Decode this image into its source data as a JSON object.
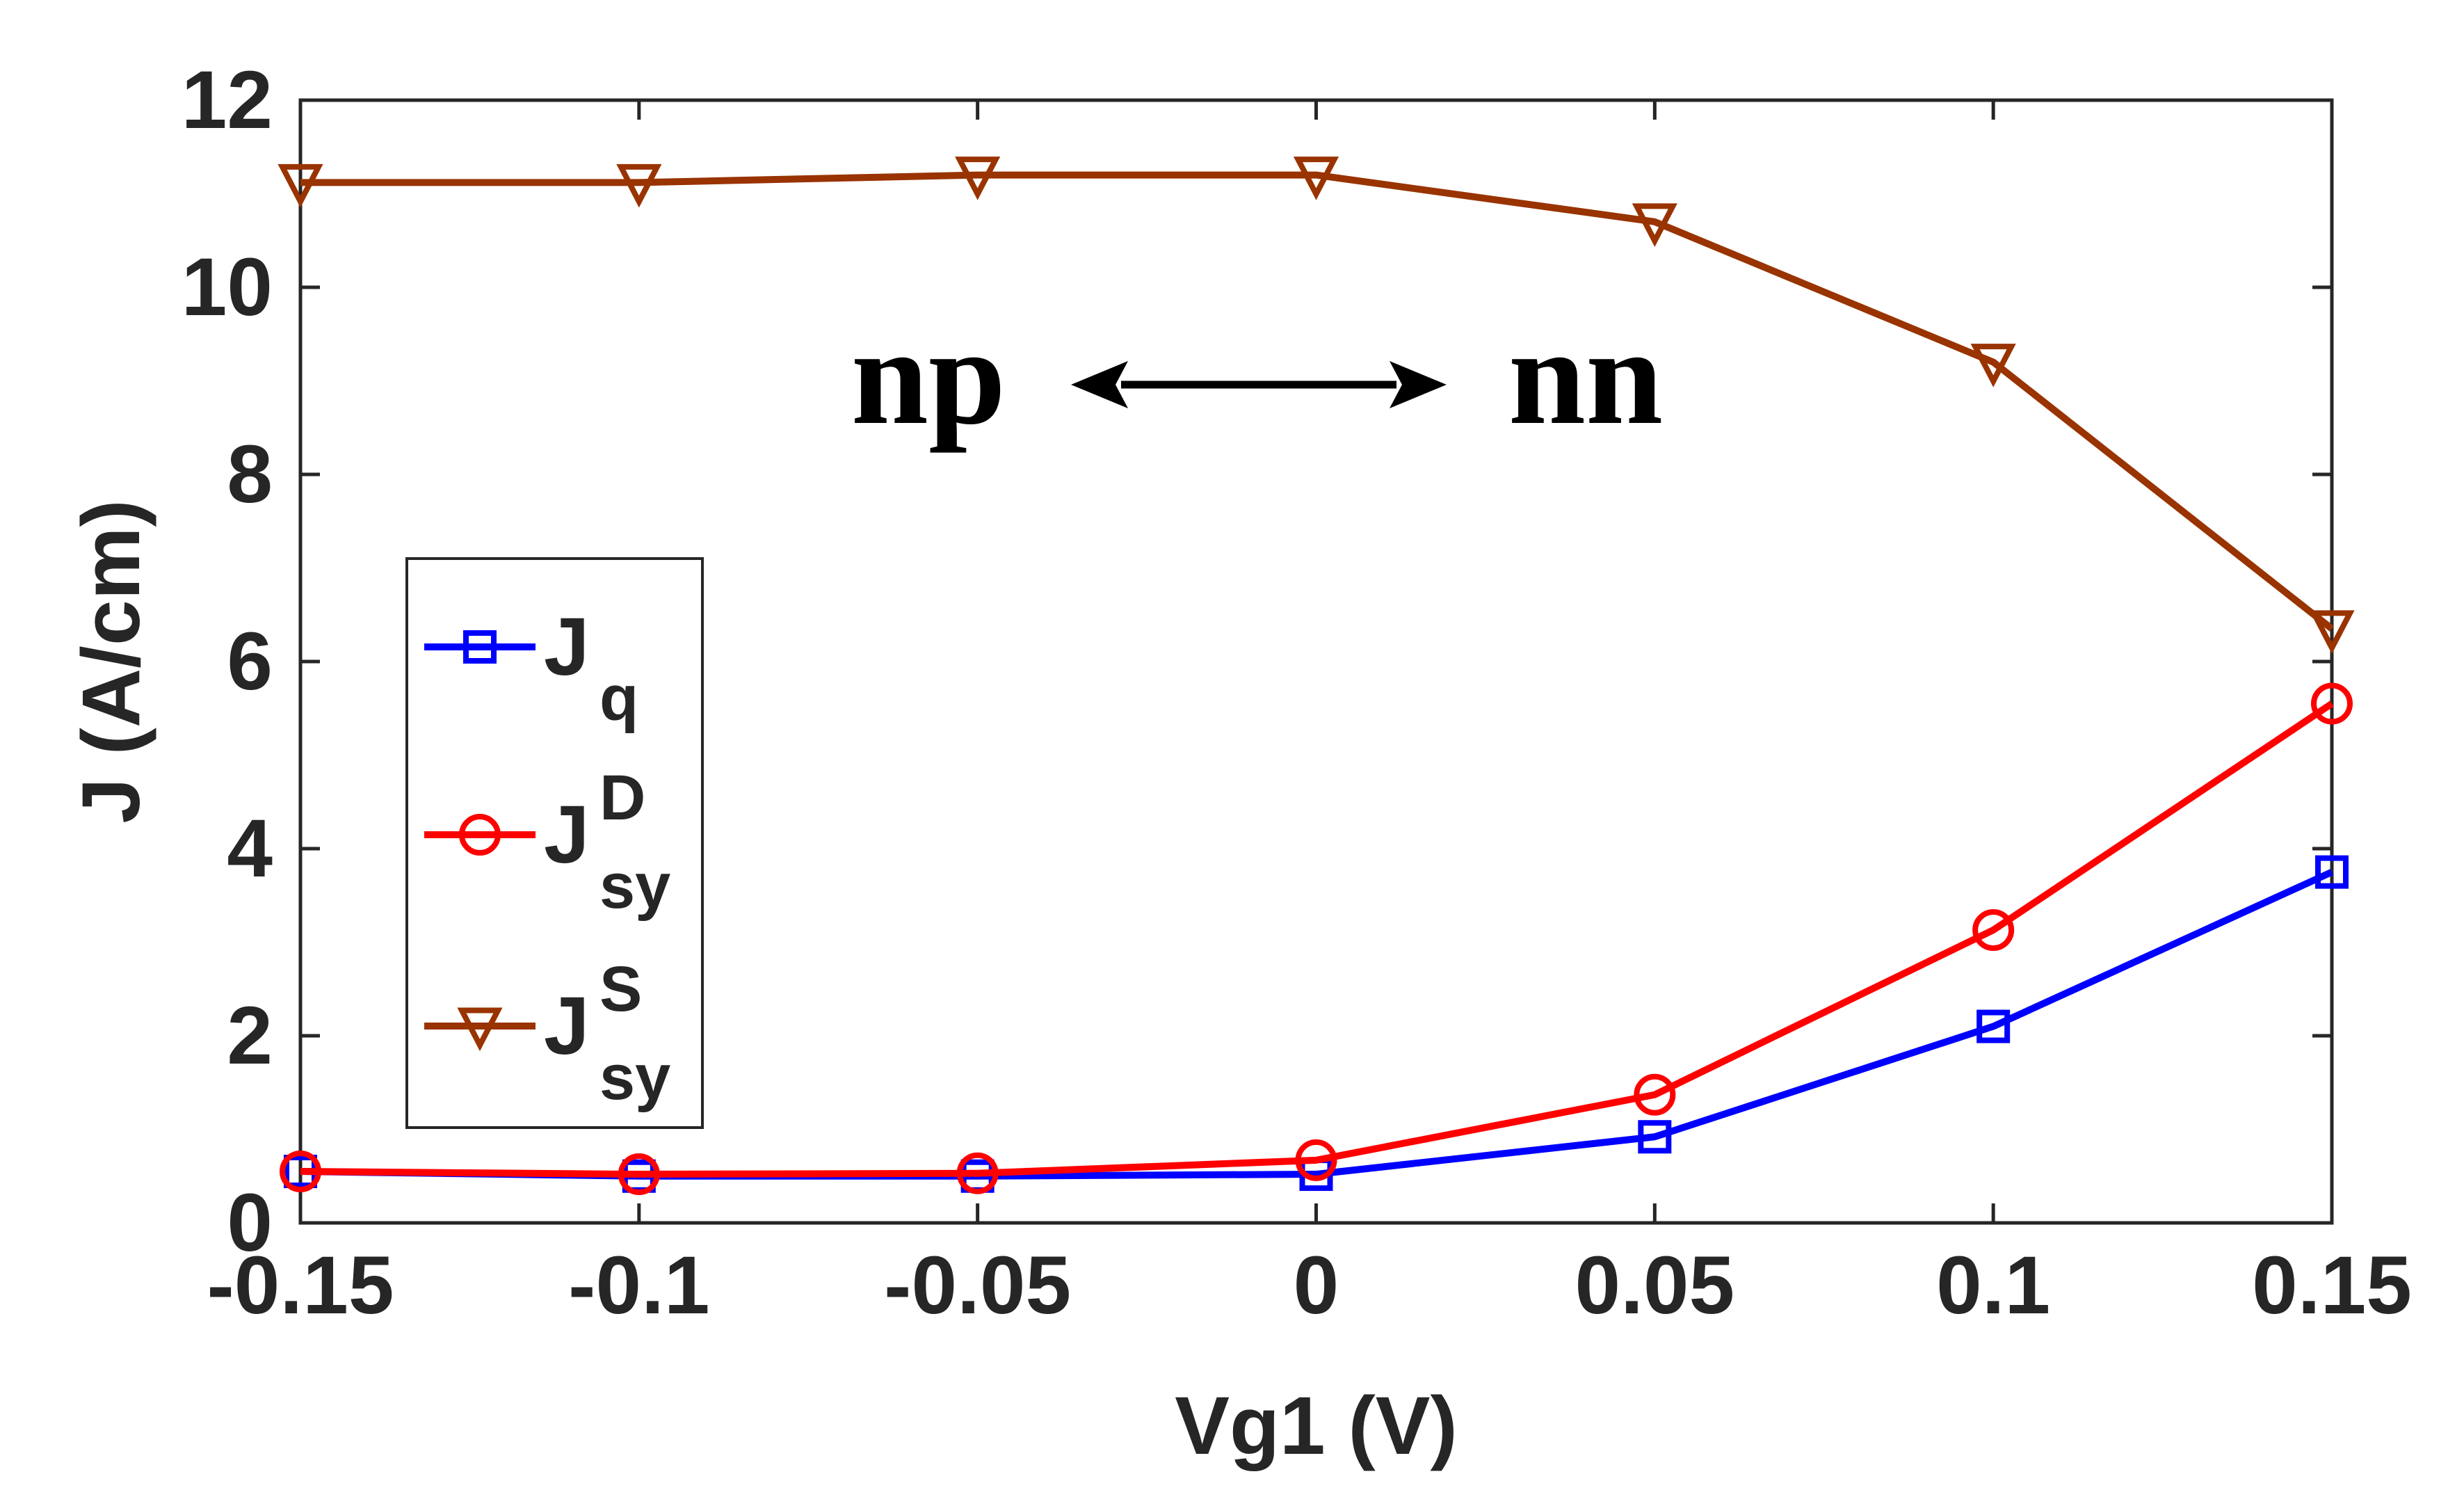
{
  "chart_data": {
    "type": "line",
    "title": "",
    "xlabel": "Vg1 (V)",
    "ylabel": "J (A/cm)",
    "x": [
      -0.15,
      -0.1,
      -0.05,
      0,
      0.05,
      0.1,
      0.15
    ],
    "xlim": [
      -0.15,
      0.15
    ],
    "ylim": [
      0,
      12
    ],
    "xticks": [
      -0.15,
      -0.1,
      -0.05,
      0,
      0.05,
      0.1,
      0.15
    ],
    "xtick_labels": [
      "-0.15",
      "-0.1",
      "-0.05",
      "0",
      "0.05",
      "0.1",
      "0.15"
    ],
    "yticks": [
      0,
      2,
      4,
      6,
      8,
      10,
      12
    ],
    "ytick_labels": [
      "0",
      "2",
      "4",
      "6",
      "8",
      "10",
      "12"
    ],
    "grid": false,
    "legend_position": "center-left",
    "series": [
      {
        "name": "Jq",
        "base": "J",
        "sub": "q",
        "sup": "",
        "marker": "square",
        "color": "#0000ff",
        "values": [
          0.55,
          0.5,
          0.5,
          0.52,
          0.92,
          2.1,
          3.75
        ]
      },
      {
        "name": "J_sy^D",
        "base": "J",
        "sub": "sy",
        "sup": "D",
        "marker": "circle",
        "color": "#ff0000",
        "values": [
          0.55,
          0.52,
          0.53,
          0.67,
          1.37,
          3.13,
          5.55
        ]
      },
      {
        "name": "J_sy^S",
        "base": "J",
        "sub": "sy",
        "sup": "S",
        "marker": "triangle-down",
        "color": "#993300",
        "values": [
          11.12,
          11.12,
          11.2,
          11.2,
          10.7,
          9.2,
          6.35
        ]
      }
    ],
    "annotations": {
      "left_label": "np",
      "right_label": "nn",
      "arrow": "double-headed-arrow"
    }
  }
}
